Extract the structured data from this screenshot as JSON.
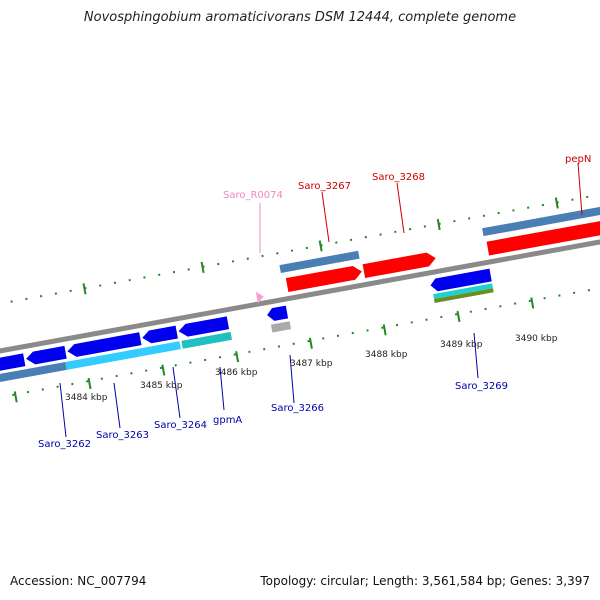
{
  "title": "Novosphingobium aromaticivorans DSM 12444, complete genome",
  "footer": {
    "accession": "Accession: NC_007794",
    "summary": "Topology: circular; Length: 3,561,584 bp; Genes: 3,397"
  },
  "colors": {
    "forward_label": "#cc0000",
    "reverse_label": "#0000aa",
    "rna_label": "#ee88bb",
    "axis": "#888888",
    "tick": "#228822"
  },
  "ticks": [
    "3484 kbp",
    "3485 kbp",
    "3486 kbp",
    "3487 kbp",
    "3488 kbp",
    "3489 kbp",
    "3490 kbp"
  ],
  "genes": {
    "saro_3262": "Saro_3262",
    "saro_3263": "Saro_3263",
    "saro_3264": "Saro_3264",
    "gpma": "gpmA",
    "saro_3266": "Saro_3266",
    "saro_r0074": "Saro_R0074",
    "saro_3267": "Saro_3267",
    "saro_3268": "Saro_3268",
    "saro_3269": "Saro_3269",
    "pepn": "pepN"
  }
}
